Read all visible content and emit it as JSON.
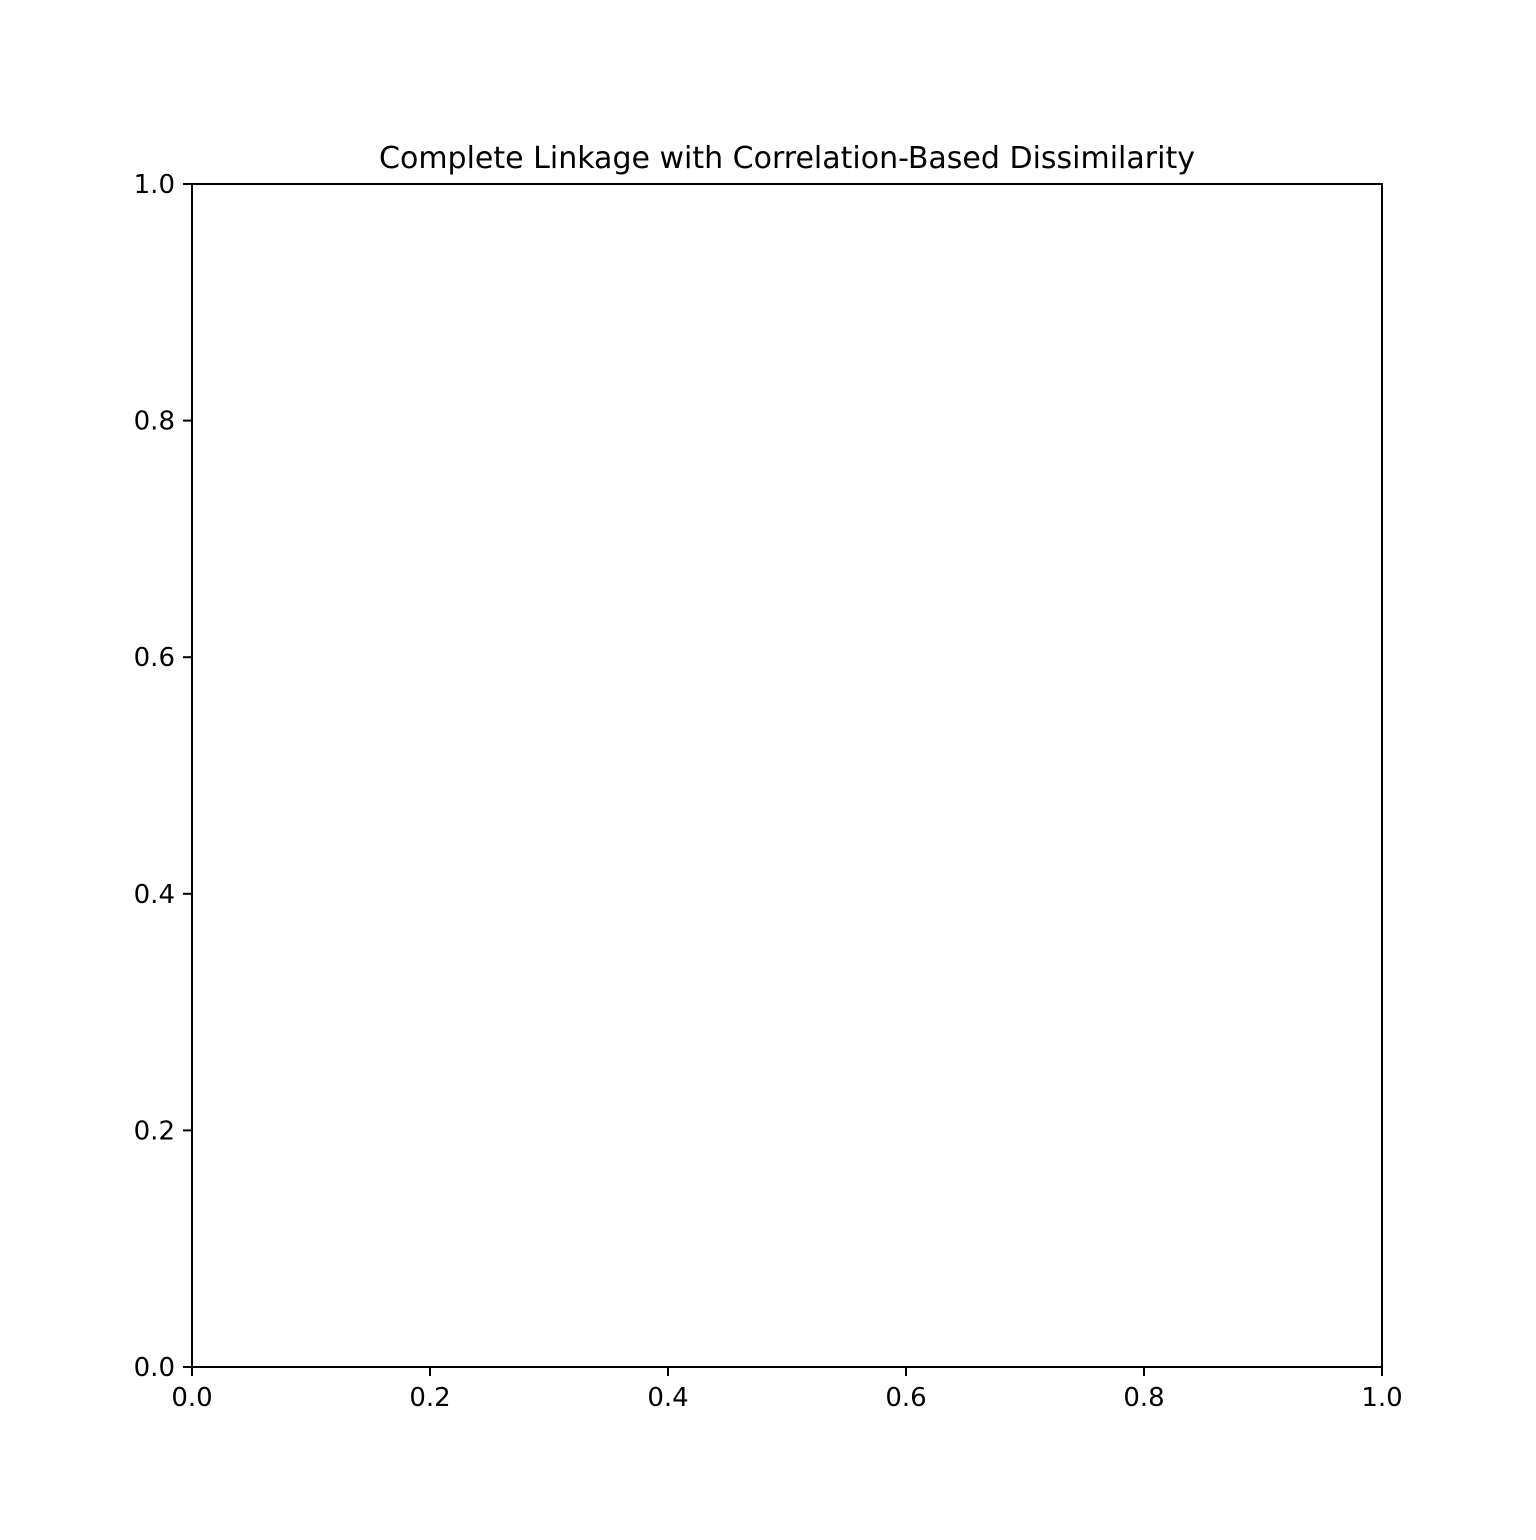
{
  "chart_data": {
    "type": "line",
    "title": "Complete Linkage with Correlation-Based Dissimilarity",
    "xlabel": "",
    "ylabel": "",
    "xlim": [
      0.0,
      1.0
    ],
    "ylim": [
      0.0,
      1.0
    ],
    "xticks": [
      0.0,
      0.2,
      0.4,
      0.6,
      0.8,
      1.0
    ],
    "yticks": [
      0.0,
      0.2,
      0.4,
      0.6,
      0.8,
      1.0
    ],
    "xtick_labels": [
      "0.0",
      "0.2",
      "0.4",
      "0.6",
      "0.8",
      "1.0"
    ],
    "ytick_labels": [
      "0.0",
      "0.2",
      "0.4",
      "0.6",
      "0.8",
      "1.0"
    ],
    "grid": false,
    "series": []
  }
}
